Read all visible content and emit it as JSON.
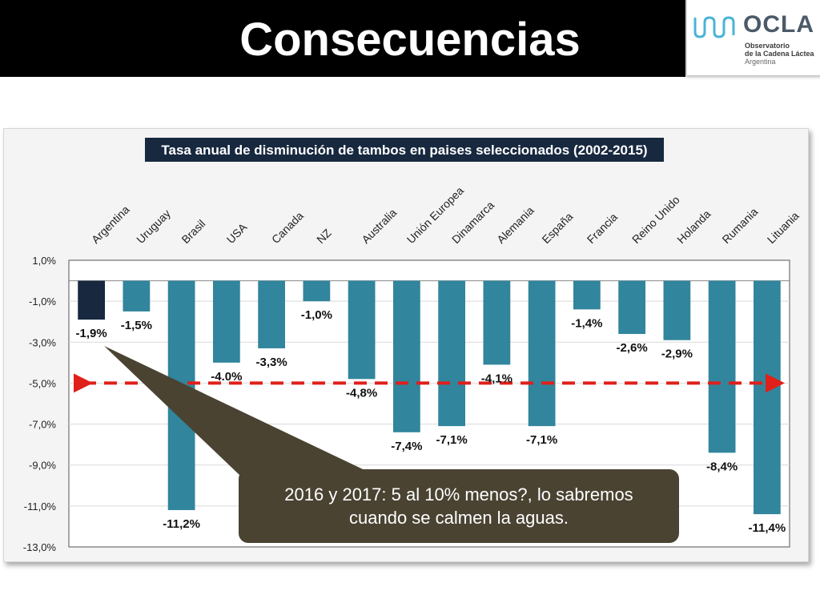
{
  "slide": {
    "title": "Consecuencias"
  },
  "logo": {
    "name": "OCLA",
    "line1": "Observatorio",
    "line2": "de la Cadena Láctea",
    "line3": "Argentina"
  },
  "callout": {
    "line1": "2016 y 2017: 5 al 10% menos?, lo sabremos",
    "line2": "cuando se calmen la aguas."
  },
  "colors": {
    "bar": "#31859c",
    "highlight": "#17283f",
    "callout": "#4a4332",
    "arrow": "#e0201b"
  },
  "chart_data": {
    "type": "bar",
    "title": "Tasa anual de disminución de tambos en paises seleccionados (2002-2015)",
    "categories": [
      "Argentina",
      "Uruguay",
      "Brasil",
      "USA",
      "Canada",
      "NZ",
      "Australia",
      "Unión Europea",
      "Dinamarca",
      "Alemania",
      "España",
      "Francia",
      "Reino Unido",
      "Holanda",
      "Rumania",
      "Lituania"
    ],
    "values": [
      -1.9,
      -1.5,
      -11.2,
      -4.0,
      -3.3,
      -1.0,
      -4.8,
      -7.4,
      -7.1,
      -4.1,
      -7.1,
      -1.4,
      -2.6,
      -2.9,
      -8.4,
      -11.4
    ],
    "data_labels": [
      "-1,9%",
      "-1,5%",
      "-11,2%",
      "-4.0%",
      "-3,3%",
      "-1,0%",
      "-4,8%",
      "-7,4%",
      "-7,1%",
      "-4,1%",
      "-7,1%",
      "-1,4%",
      "-2,6%",
      "-2,9%",
      "-8,4%",
      "-11,4%"
    ],
    "highlight_category": "Argentina",
    "y_ticks": [
      1,
      -1,
      -3,
      -5,
      -7,
      -9,
      -11,
      -13
    ],
    "y_tick_labels": [
      "1,0%",
      "-1,0%",
      "-3,0%",
      "-5,0%",
      "-7,0%",
      "-9,0%",
      "-11,0%",
      "-13,0%"
    ],
    "ylim": [
      -13,
      1
    ],
    "reference_line": -5.0,
    "xlabel": "",
    "ylabel": ""
  }
}
